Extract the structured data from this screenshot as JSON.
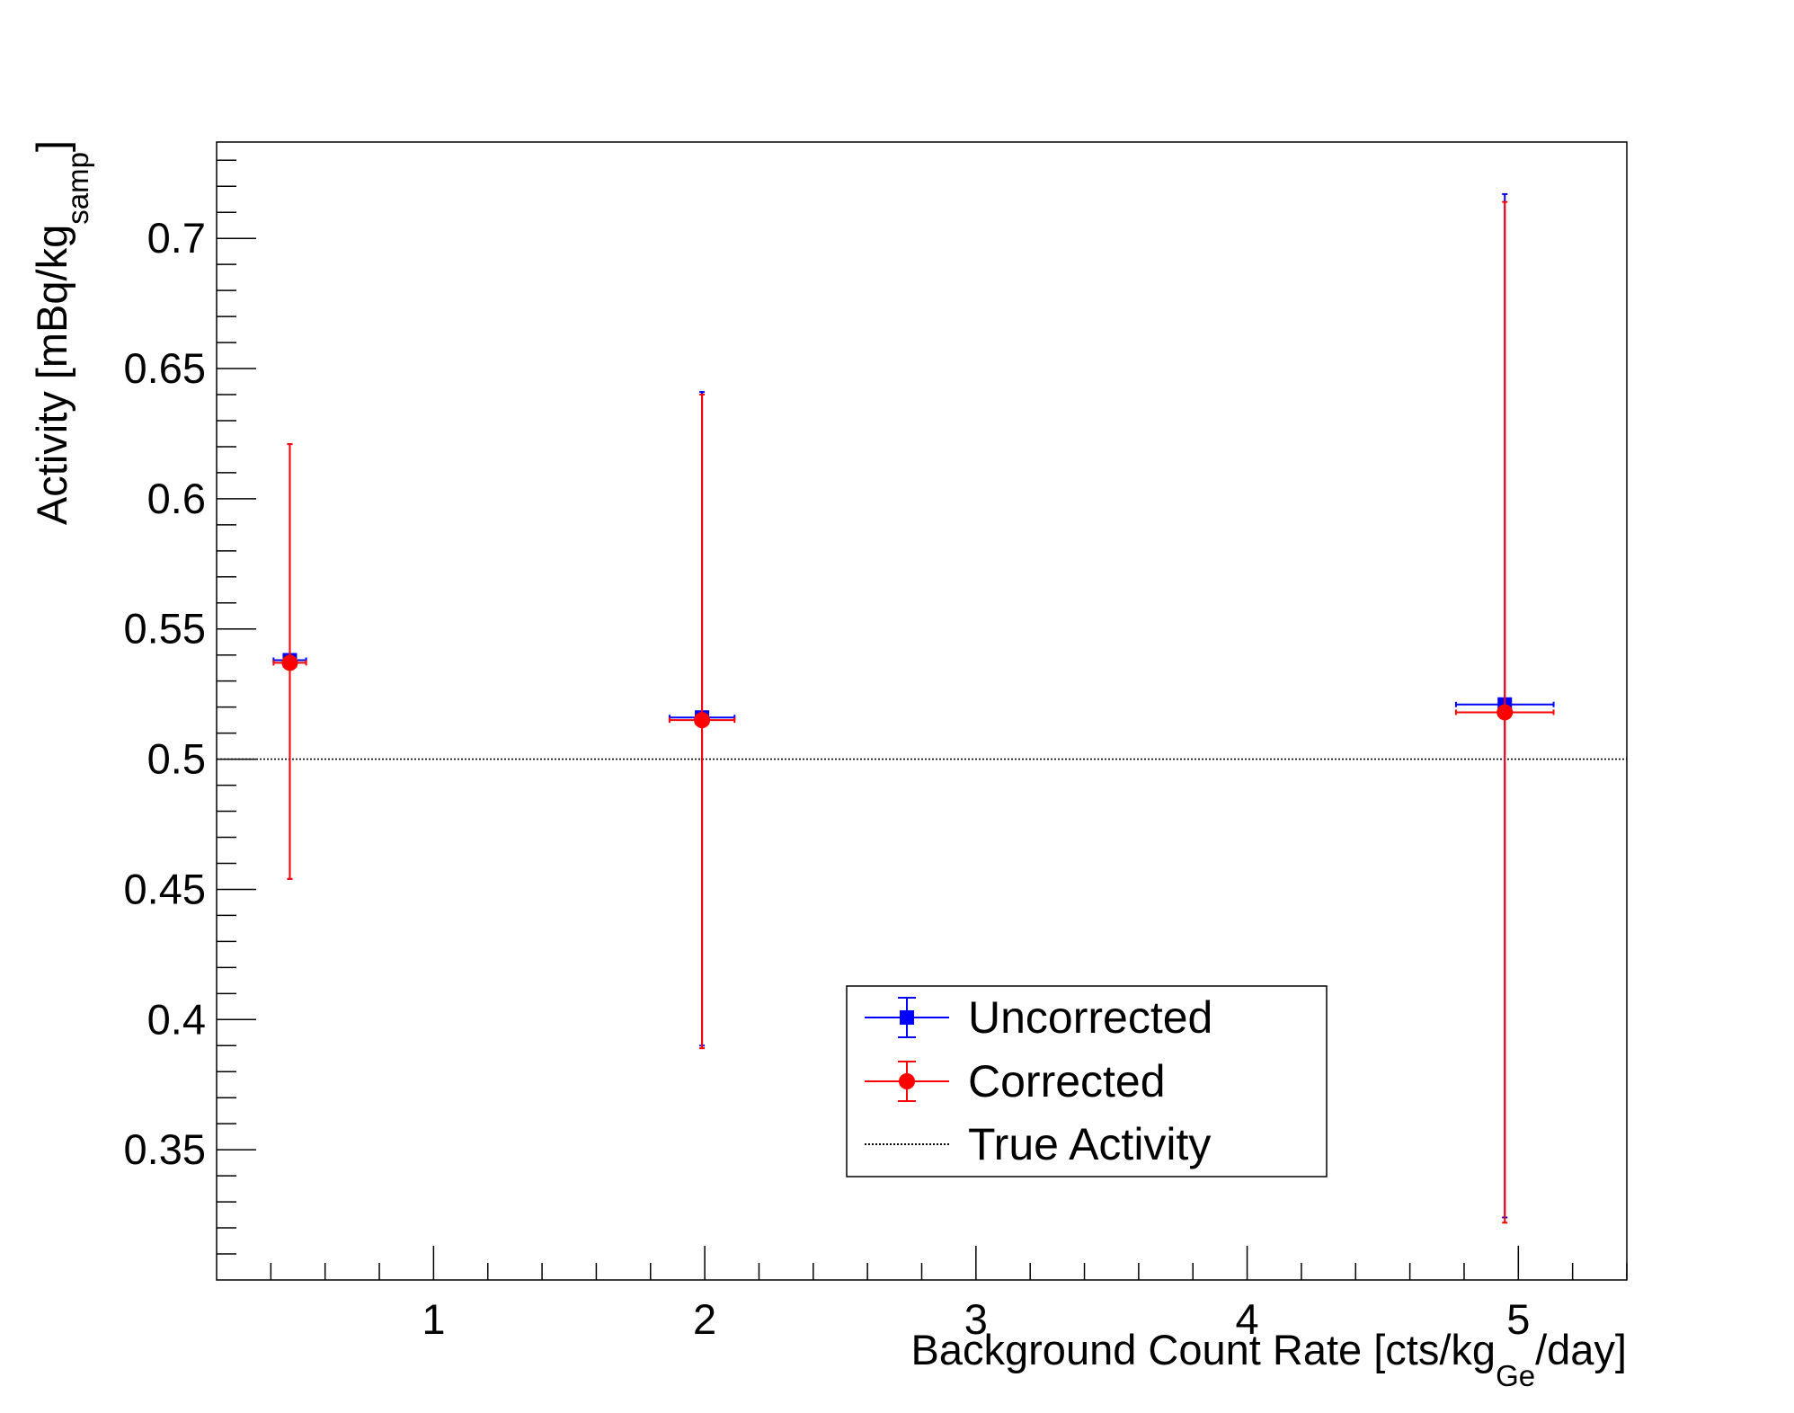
{
  "chart_data": {
    "type": "scatter",
    "title": "",
    "xlabel": "Background Count Rate [cts/kg",
    "xlabel_sub": "Ge",
    "xlabel_tail": "/day]",
    "ylabel": "Activity [mBq/kg",
    "ylabel_sub": "samp",
    "ylabel_tail": "]",
    "xlim": [
      0.2,
      5.4
    ],
    "ylim": [
      0.3,
      0.737
    ],
    "x_ticks": [
      1,
      2,
      3,
      4,
      5
    ],
    "x_tick_labels": [
      "1",
      "2",
      "3",
      "4",
      "5"
    ],
    "y_ticks": [
      0.35,
      0.4,
      0.45,
      0.5,
      0.55,
      0.6,
      0.65,
      0.7
    ],
    "y_tick_labels": [
      "0.35",
      "0.4",
      "0.45",
      "0.5",
      "0.55",
      "0.6",
      "0.65",
      "0.7"
    ],
    "grid": false,
    "legend_position": "bottom-center",
    "series": [
      {
        "name": "Uncorrected",
        "color": "#0000ff",
        "marker": "square",
        "points": [
          {
            "x": 0.47,
            "xerr": 0.06,
            "y": 0.538,
            "yerr_low": 0.084,
            "yerr_high": 0.083
          },
          {
            "x": 1.99,
            "xerr": 0.12,
            "y": 0.516,
            "yerr_low": 0.126,
            "yerr_high": 0.125
          },
          {
            "x": 4.95,
            "xerr": 0.18,
            "y": 0.521,
            "yerr_low": 0.197,
            "yerr_high": 0.196
          }
        ]
      },
      {
        "name": "Corrected",
        "color": "#ff0000",
        "marker": "circle",
        "points": [
          {
            "x": 0.47,
            "xerr": 0.06,
            "y": 0.537,
            "yerr_low": 0.083,
            "yerr_high": 0.084
          },
          {
            "x": 1.99,
            "xerr": 0.12,
            "y": 0.515,
            "yerr_low": 0.126,
            "yerr_high": 0.125
          },
          {
            "x": 4.95,
            "xerr": 0.18,
            "y": 0.518,
            "yerr_low": 0.196,
            "yerr_high": 0.196
          }
        ]
      }
    ],
    "reference_line": {
      "name": "True Activity",
      "y": 0.5,
      "color": "#000000",
      "style": "dotted"
    }
  }
}
